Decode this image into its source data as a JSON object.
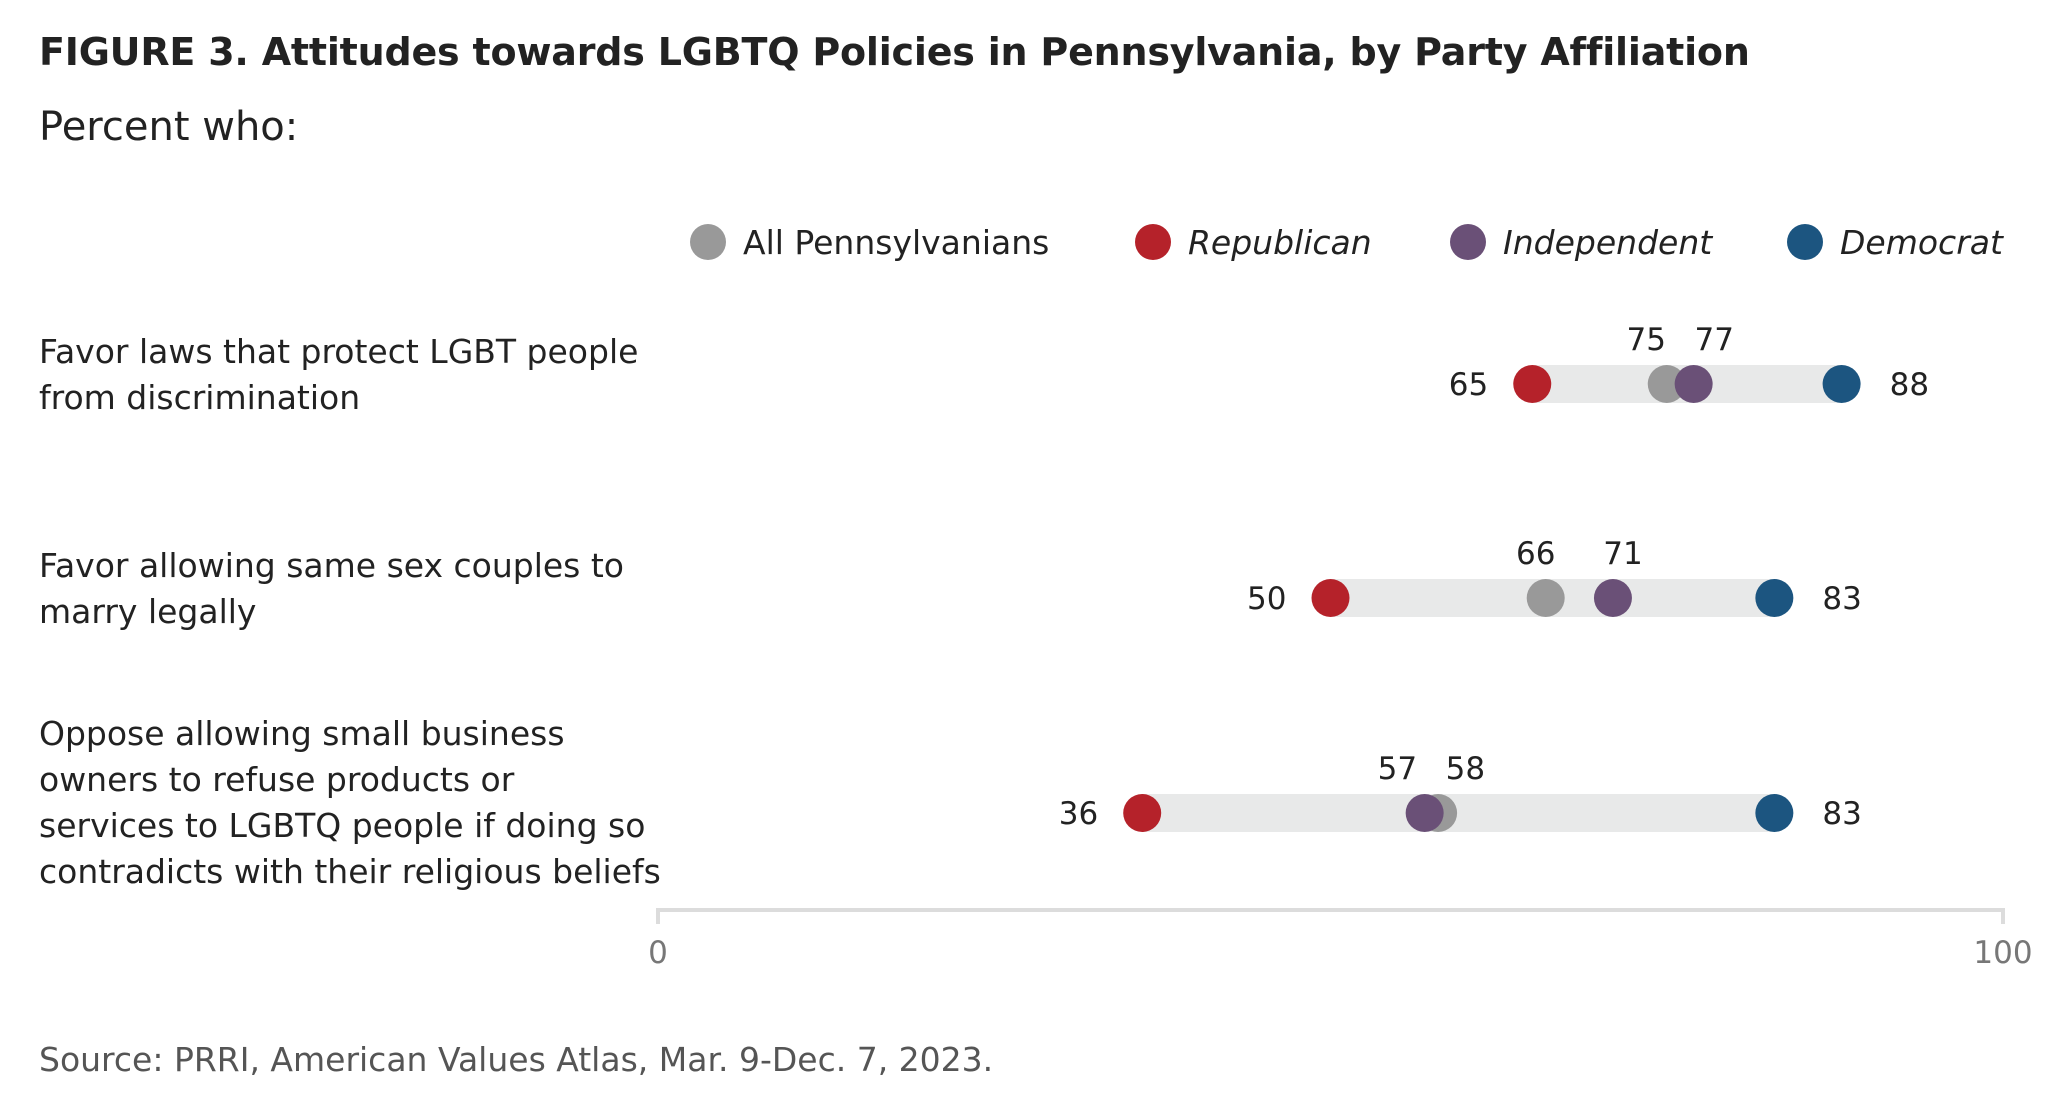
{
  "chart_data": {
    "type": "dot-range",
    "title": "FIGURE 3. Attitudes towards LGBTQ Policies in Pennsylvania, by Party Affiliation",
    "subtitle": "Percent who:",
    "source": "Source: PRRI, American Values Atlas, Mar. 9-Dec. 7, 2023.",
    "xlim": [
      0,
      100
    ],
    "x_ticks": [
      0,
      100
    ],
    "legend_placement": "top",
    "series": [
      {
        "name": "All Pennsylvanians",
        "color": "#999999",
        "italic": false,
        "values": [
          75,
          66,
          58
        ]
      },
      {
        "name": "Republican",
        "color": "#b5222a",
        "italic": true,
        "values": [
          65,
          50,
          36
        ]
      },
      {
        "name": "Independent",
        "color": "#6a5077",
        "italic": true,
        "values": [
          77,
          71,
          57
        ]
      },
      {
        "name": "Democrat",
        "color": "#1c5580",
        "italic": true,
        "values": [
          88,
          83,
          83
        ]
      }
    ],
    "categories": [
      {
        "lines": [
          "Favor laws that protect LGBT people",
          "from discrimination"
        ]
      },
      {
        "lines": [
          "Favor allowing same sex couples to",
          "marry legally"
        ]
      },
      {
        "lines": [
          "Oppose allowing small business",
          "owners to refuse products or",
          "services to LGBTQ people if doing so",
          "contradicts with their religious beliefs"
        ]
      }
    ]
  }
}
